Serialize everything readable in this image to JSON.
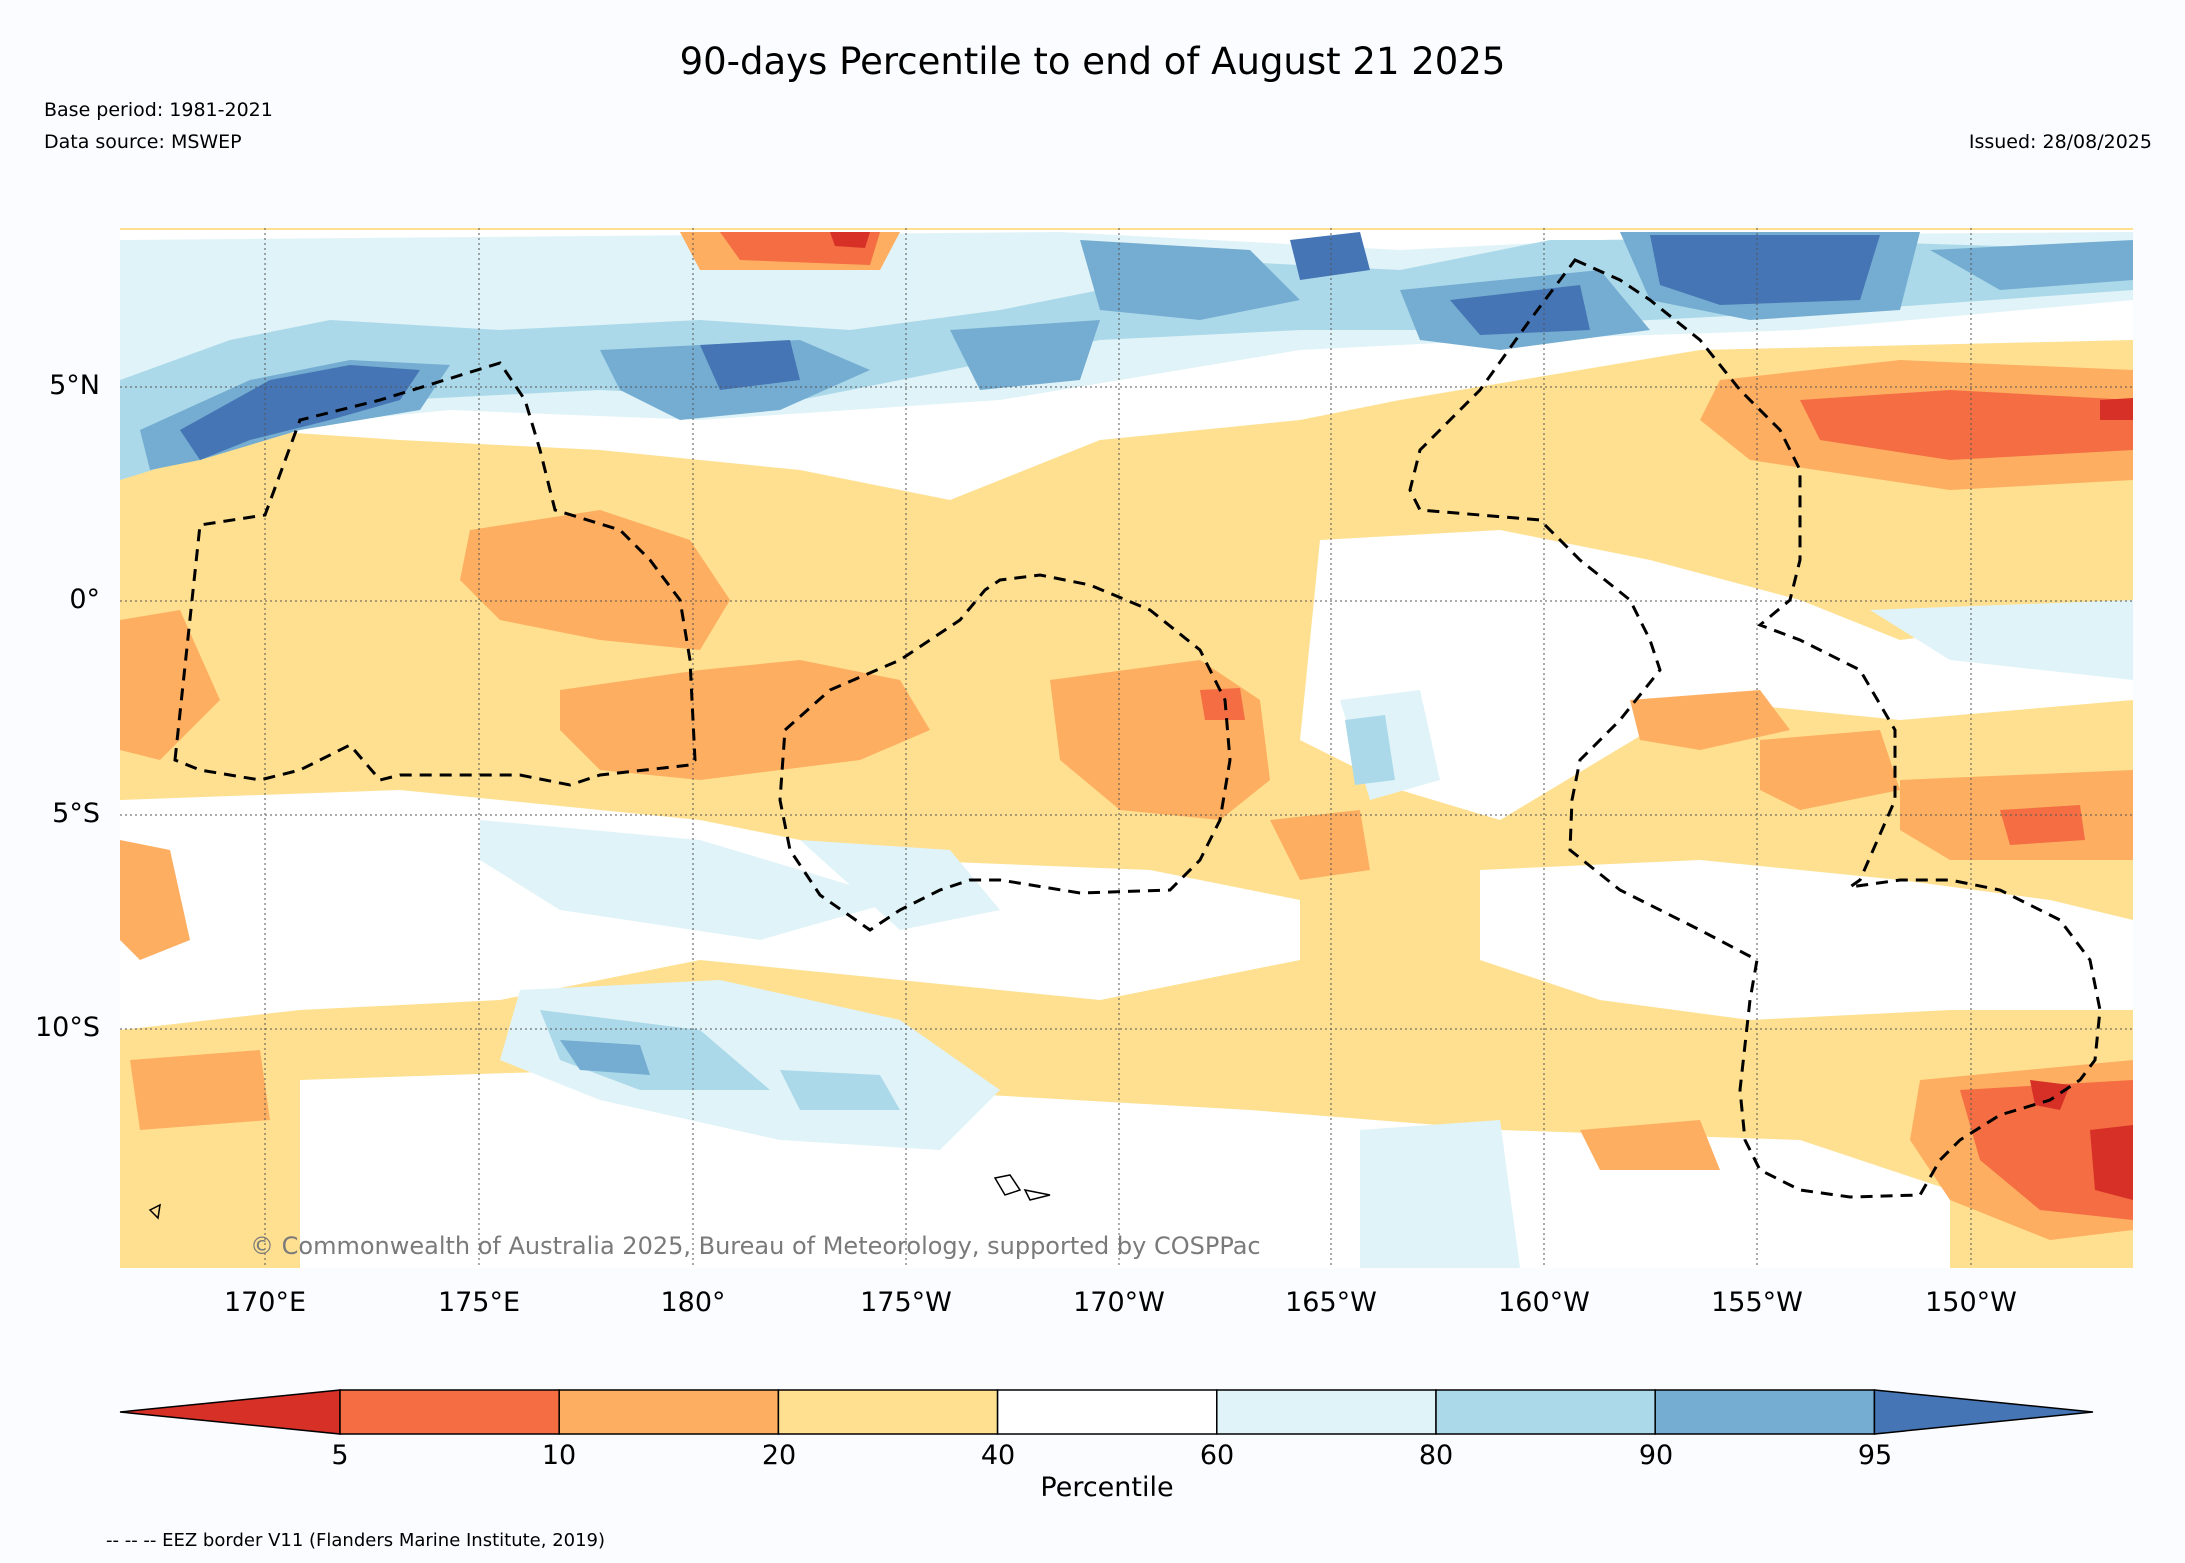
{
  "title": "90-days Percentile to end of August 21 2025",
  "base_period": "Base period: 1981-2021",
  "data_source": "Data source: MSWEP",
  "issued": "Issued: 28/08/2025",
  "copyright": "© Commonwealth of Australia 2025, Bureau of Meteorology, supported by COSPPac",
  "footnote": "-- -- -- EEZ border V11 (Flanders Marine Institute, 2019)",
  "lat_ticks": [
    "5°N",
    "0°",
    "5°S",
    "10°S"
  ],
  "lon_ticks": [
    "170°E",
    "175°E",
    "180°",
    "175°W",
    "170°W",
    "165°W",
    "160°W",
    "155°W",
    "150°W"
  ],
  "colorbar": {
    "label": "Percentile",
    "ticks": [
      "5",
      "10",
      "20",
      "40",
      "60",
      "80",
      "90",
      "95"
    ],
    "colors": [
      "#d73027",
      "#f46d43",
      "#fdae61",
      "#fee090",
      "#ffffff",
      "#e0f3f8",
      "#abd9e9",
      "#74add1",
      "#4575b4"
    ]
  },
  "map_colors": {
    "p5": "#d73027",
    "p5_10": "#f46d43",
    "p10_20": "#fdae61",
    "p20_40": "#fee090",
    "p40_60": "#ffffff",
    "p60_80": "#e0f3f8",
    "p80_90": "#abd9e9",
    "p90_95": "#74add1",
    "p95": "#4575b4"
  }
}
